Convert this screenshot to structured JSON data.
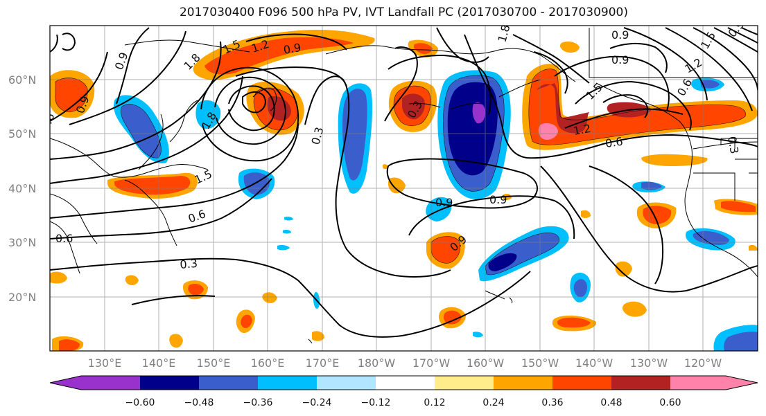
{
  "title": "2017030400 F096 500 hPa PV, IVT Landfall PC (2017030700 - 2017030900)",
  "lat_labels": [
    "60°N",
    "50°N",
    "40°N",
    "30°N",
    "20°N"
  ],
  "lon_labels": [
    "130°E",
    "140°E",
    "150°E",
    "160°E",
    "170°E",
    "180°W",
    "170°W",
    "160°W",
    "150°W",
    "140°W",
    "130°W",
    "120°W"
  ],
  "colorbar": {
    "ticks": [
      "−0.60",
      "−0.48",
      "−0.36",
      "−0.24",
      "−0.12",
      "0.12",
      "0.24",
      "0.36",
      "0.48",
      "0.60"
    ],
    "colors": [
      "#9932CC",
      "#00008B",
      "#3A5FCD",
      "#00BFFF",
      "#B2E5FF",
      "#FFFFFF",
      "#FFEC8B",
      "#FFA500",
      "#FF4500",
      "#B22222",
      "#FF82AB"
    ]
  },
  "contour_labels": [
    "0.9",
    "1.8",
    "1.5",
    "1.2",
    "0.9",
    "0.9",
    "1.8",
    "0.3",
    "0.3",
    "0.9",
    "0.9",
    "1.8",
    "1.5",
    "1.2",
    "0.6",
    "0.9",
    "0.9",
    "1.5",
    "1.2",
    "0.6",
    "0.3",
    "1.5",
    "0.6",
    "0.6",
    "0.3",
    "0.9",
    "0.9",
    "0.6",
    "1.2",
    "1.5",
    "0.9",
    "0.3"
  ]
}
